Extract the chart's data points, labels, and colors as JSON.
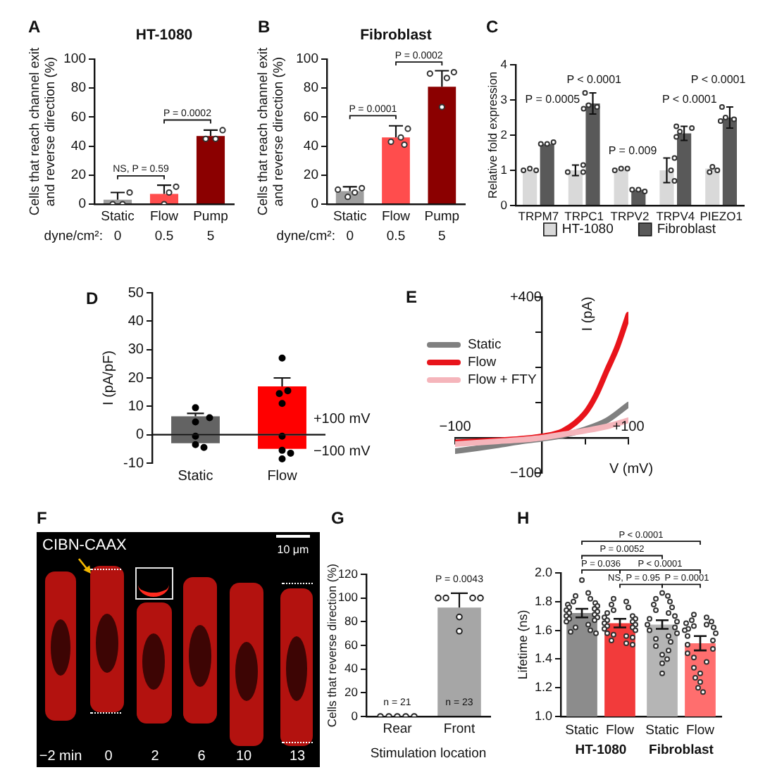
{
  "chart_data": [
    {
      "type": "bar",
      "title": "HT-1080",
      "ylabel": "Cells that reach channel exit and reverse direction (%)",
      "categories": [
        "Static",
        "Flow",
        "Pump"
      ],
      "series": [
        {
          "type": "bar",
          "colors": [
            "#9e9e9e",
            "#ff4d4d",
            "#8b0000"
          ],
          "values": [
            3,
            7,
            47
          ],
          "errors": [
            [
              3,
              8
            ],
            [
              7,
              13
            ],
            [
              47,
              51
            ]
          ]
        },
        {
          "type": "scatter",
          "color": "#333333",
          "x": [
            "Static",
            "Static",
            "Static",
            "Flow",
            "Flow",
            "Flow",
            "Pump",
            "Pump",
            "Pump"
          ],
          "values": [
            8,
            0,
            0,
            12,
            8,
            0,
            51,
            45,
            45
          ]
        }
      ],
      "ylim": [
        0,
        100
      ],
      "yticks": [
        0,
        20,
        40,
        60,
        80,
        100
      ],
      "annotations": [
        "A",
        "NS, P = 0.59",
        "P = 0.0002",
        "dyne/cm²:",
        "0",
        "0.5",
        "5"
      ]
    },
    {
      "type": "bar",
      "title": "Fibroblast",
      "ylabel": "Cells that reach channel exit and reverse direction (%)",
      "categories": [
        "Static",
        "Flow",
        "Pump"
      ],
      "series": [
        {
          "type": "bar",
          "colors": [
            "#9e9e9e",
            "#ff4d4d",
            "#8b0000"
          ],
          "values": [
            9,
            46,
            81
          ],
          "errors": [
            [
              9,
              12
            ],
            [
              46,
              54
            ],
            [
              81,
              92
            ]
          ]
        },
        {
          "type": "scatter",
          "color": "#333333",
          "x": [
            "Static",
            "Static",
            "Static",
            "Static",
            "Flow",
            "Flow",
            "Flow",
            "Flow",
            "Pump",
            "Pump",
            "Pump",
            "Pump"
          ],
          "values": [
            11,
            10,
            8,
            5,
            52,
            46,
            43,
            41,
            91,
            90,
            87,
            67
          ]
        }
      ],
      "ylim": [
        0,
        100
      ],
      "yticks": [
        0,
        20,
        40,
        60,
        80,
        100
      ],
      "annotations": [
        "B",
        "P = 0.0001",
        "P = 0.0002",
        "dyne/cm²:",
        "0",
        "0.5",
        "5"
      ]
    },
    {
      "type": "bar",
      "ylabel": "Relative fold expression",
      "categories": [
        "TRPM7",
        "TRPC1",
        "TRPV2",
        "TRPV4",
        "PIEZO1"
      ],
      "series": [
        {
          "type": "bar",
          "name": "HT-1080",
          "color": "#d9d9d9",
          "values": [
            1,
            1,
            1.05,
            1,
            1.05
          ],
          "errors": [
            null,
            0.15,
            null,
            0.35,
            null
          ]
        },
        {
          "type": "bar",
          "name": "Fibroblast",
          "color": "#595959",
          "values": [
            1.75,
            2.9,
            0.45,
            2.05,
            2.5
          ],
          "errors": [
            null,
            0.3,
            null,
            0.2,
            0.3
          ]
        },
        {
          "type": "scatter",
          "color": "#333333",
          "x": [
            "TRPM7",
            "TRPM7",
            "TRPM7",
            "TRPC1",
            "TRPC1",
            "TRPC1",
            "TRPV2",
            "TRPV2",
            "TRPV2",
            "TRPV4",
            "TRPV4",
            "TRPV4",
            "PIEZO1",
            "PIEZO1",
            "PIEZO1"
          ],
          "values": [
            1.05,
            1,
            1,
            1.15,
            0.95,
            0.95,
            1.05,
            1.05,
            1,
            1.35,
            1,
            0.7,
            1.1,
            1,
            0.95
          ]
        },
        {
          "type": "scatter",
          "color": "#333333",
          "x": [
            "TRPM7",
            "TRPM7",
            "TRPM7",
            "TRPC1",
            "TRPC1",
            "TRPC1",
            "TRPC1",
            "TRPV2",
            "TRPV2",
            "TRPV2",
            "TRPV4",
            "TRPV4",
            "TRPV4",
            "TRPV4",
            "PIEZO1",
            "PIEZO1",
            "PIEZO1",
            "PIEZO1"
          ],
          "values": [
            1.75,
            1.75,
            1.8,
            3.2,
            2.85,
            2.8,
            2.75,
            0.45,
            0.45,
            0.4,
            2.25,
            2.2,
            2.1,
            1.95,
            2.8,
            2.5,
            2.45,
            2.4
          ]
        }
      ],
      "ylim": [
        0,
        4
      ],
      "yticks": [
        0,
        1,
        2,
        3,
        4
      ],
      "legend": "bottom",
      "annotations": [
        "C",
        "P = 0.0005",
        "P < 0.0001",
        "P = 0.009",
        "P < 0.0001",
        "P < 0.0001"
      ]
    },
    {
      "type": "bar",
      "ylabel": "I (pA/pF)",
      "categories": [
        "Static",
        "Flow"
      ],
      "stacked": true,
      "series": [
        {
          "type": "bar",
          "name": "+100 mV",
          "colors": [
            "#636363",
            "#ff0000"
          ],
          "values": [
            6.5,
            17
          ],
          "errors": [
            [
              6.5,
              7.5
            ],
            [
              17,
              20
            ]
          ]
        },
        {
          "type": "bar",
          "name": "−100 mV",
          "colors": [
            "#636363",
            "#ff0000"
          ],
          "values": [
            -3,
            -5
          ]
        },
        {
          "type": "scatter",
          "color": "#000000",
          "x": [
            "Static",
            "Static",
            "Static",
            "Static",
            "Static",
            "Static",
            "Flow",
            "Flow",
            "Flow",
            "Flow",
            "Flow",
            "Flow",
            "Flow",
            "Flow"
          ],
          "values": [
            9.5,
            6,
            4.5,
            -0.5,
            -3.5,
            -4.5,
            27,
            15.5,
            14.5,
            11,
            -0.5,
            -5.5,
            -6.5,
            -8.5
          ]
        }
      ],
      "ylim": [
        -10,
        50
      ],
      "yticks": [
        -10,
        0,
        10,
        20,
        30,
        40,
        50
      ],
      "annotations": [
        "D"
      ]
    },
    {
      "type": "line",
      "xlabel": "V (mV)",
      "ylabel": "I (pA)",
      "legend": "top left",
      "series": [
        {
          "name": "Static",
          "color": "#808080",
          "x": [
            -100,
            -75,
            -50,
            -25,
            0,
            25,
            50,
            75,
            100
          ],
          "values": [
            -38,
            -30,
            -21,
            -11,
            -3,
            7,
            24,
            49,
            94
          ]
        },
        {
          "name": "Flow",
          "color": "#e8141b",
          "x": [
            -100,
            -75,
            -50,
            -25,
            0,
            25,
            50,
            62.5,
            75,
            87.5,
            100
          ],
          "values": [
            -13,
            -10,
            -7,
            -3,
            4,
            20,
            70,
            120,
            190,
            260,
            350
          ]
        },
        {
          "name": "Flow + FTY",
          "color": "#f5b5bb",
          "x": [
            -100,
            -75,
            -50,
            -25,
            0,
            25,
            50,
            75,
            100
          ],
          "values": [
            -18,
            -14,
            -10,
            -6,
            0,
            10,
            20,
            32,
            50
          ]
        }
      ],
      "xlim": [
        -100,
        100
      ],
      "xticks": [
        {
          "value": -100,
          "label": "−100"
        },
        {
          "value": -50,
          "label": null
        },
        {
          "value": 0,
          "label": null
        },
        {
          "value": 50,
          "label": null
        },
        {
          "value": 100,
          "label": "+100"
        }
      ],
      "ylim": [
        -100,
        400
      ],
      "yticks": [
        {
          "value": -100,
          "label": "−100"
        },
        {
          "value": 100,
          "label": null
        },
        {
          "value": 200,
          "label": null
        },
        {
          "value": 300,
          "label": null
        },
        {
          "value": 400,
          "label": "+400"
        }
      ],
      "annotations": [
        "E"
      ]
    },
    {
      "type": "other",
      "annotations": [
        "F",
        "CIBN-CAAX",
        "10 μm",
        "−2 min",
        "0",
        "2",
        "6",
        "10",
        "13"
      ]
    },
    {
      "type": "bar",
      "xlabel": "Stimulation location",
      "ylabel": "Cells that reverse direction (%)",
      "categories": [
        "Rear",
        "Front"
      ],
      "series": [
        {
          "type": "bar",
          "color": "#a6a6a6",
          "values": [
            0,
            92
          ],
          "errors": [
            null,
            [
              92,
              104
            ]
          ]
        },
        {
          "type": "scatter",
          "color": "#222222",
          "x": [
            "Rear",
            "Rear",
            "Rear",
            "Rear",
            "Rear",
            "Front",
            "Front",
            "Front",
            "Front",
            "Front",
            "Front"
          ],
          "values": [
            0,
            0,
            0,
            0,
            0,
            100,
            100,
            100,
            100,
            84,
            72
          ]
        }
      ],
      "ylim": [
        0,
        120
      ],
      "yticks": [
        0,
        20,
        40,
        60,
        80,
        100,
        120
      ],
      "annotations": [
        "G",
        "P = 0.0043",
        "n = 21",
        "n = 23"
      ]
    },
    {
      "type": "bar",
      "ylabel": "Lifetime (ns)",
      "categories": [
        "HT-1080",
        "Fibroblast"
      ],
      "series": [
        {
          "type": "bar",
          "name": "Static",
          "colors": [
            "#8c8c8c",
            "#b5b5b5"
          ],
          "values": [
            1.72,
            1.64
          ],
          "errors": [
            0.03,
            0.03
          ]
        },
        {
          "type": "bar",
          "name": "Flow",
          "colors": [
            "#f23b3b",
            "#ff6e6e"
          ],
          "values": [
            1.65,
            1.51
          ],
          "errors": [
            0.03,
            0.05
          ]
        },
        {
          "type": "scatter",
          "color": "#333333",
          "x": [
            "HT-1080",
            "HT-1080",
            "HT-1080",
            "HT-1080",
            "HT-1080",
            "HT-1080",
            "HT-1080",
            "HT-1080",
            "HT-1080",
            "HT-1080",
            "HT-1080",
            "HT-1080",
            "HT-1080",
            "HT-1080",
            "HT-1080",
            "HT-1080",
            "HT-1080",
            "HT-1080",
            "HT-1080",
            "HT-1080",
            "HT-1080",
            "HT-1080",
            "HT-1080",
            "HT-1080"
          ],
          "values": [
            1.95,
            1.86,
            1.84,
            1.82,
            1.8,
            1.79,
            1.78,
            1.77,
            1.76,
            1.75,
            1.74,
            1.73,
            1.72,
            1.71,
            1.7,
            1.69,
            1.68,
            1.67,
            1.66,
            1.64,
            1.62,
            1.6,
            1.59,
            1.58
          ]
        },
        {
          "type": "scatter",
          "color": "#333333",
          "x": [
            "HT-1080",
            "HT-1080",
            "HT-1080",
            "HT-1080",
            "HT-1080",
            "HT-1080",
            "HT-1080",
            "HT-1080",
            "HT-1080",
            "HT-1080",
            "HT-1080",
            "HT-1080",
            "HT-1080",
            "HT-1080",
            "HT-1080",
            "HT-1080",
            "HT-1080",
            "HT-1080",
            "HT-1080",
            "HT-1080",
            "HT-1080",
            "HT-1080",
            "HT-1080",
            "HT-1080"
          ],
          "values": [
            1.82,
            1.8,
            1.78,
            1.76,
            1.74,
            1.72,
            1.7,
            1.69,
            1.68,
            1.67,
            1.66,
            1.65,
            1.64,
            1.63,
            1.62,
            1.61,
            1.6,
            1.58,
            1.57,
            1.56,
            1.55,
            1.53,
            1.51,
            1.5
          ]
        },
        {
          "type": "scatter",
          "color": "#333333",
          "x": [
            "Fibroblast",
            "Fibroblast",
            "Fibroblast",
            "Fibroblast",
            "Fibroblast",
            "Fibroblast",
            "Fibroblast",
            "Fibroblast",
            "Fibroblast",
            "Fibroblast",
            "Fibroblast",
            "Fibroblast",
            "Fibroblast",
            "Fibroblast",
            "Fibroblast",
            "Fibroblast",
            "Fibroblast",
            "Fibroblast",
            "Fibroblast",
            "Fibroblast",
            "Fibroblast",
            "Fibroblast",
            "Fibroblast",
            "Fibroblast"
          ],
          "values": [
            1.86,
            1.84,
            1.82,
            1.8,
            1.78,
            1.76,
            1.74,
            1.72,
            1.7,
            1.68,
            1.66,
            1.64,
            1.62,
            1.6,
            1.58,
            1.56,
            1.54,
            1.52,
            1.49,
            1.46,
            1.43,
            1.4,
            1.37,
            1.3
          ]
        },
        {
          "type": "scatter",
          "color": "#333333",
          "x": [
            "Fibroblast",
            "Fibroblast",
            "Fibroblast",
            "Fibroblast",
            "Fibroblast",
            "Fibroblast",
            "Fibroblast",
            "Fibroblast",
            "Fibroblast",
            "Fibroblast",
            "Fibroblast",
            "Fibroblast",
            "Fibroblast",
            "Fibroblast",
            "Fibroblast",
            "Fibroblast",
            "Fibroblast",
            "Fibroblast",
            "Fibroblast",
            "Fibroblast",
            "Fibroblast",
            "Fibroblast",
            "Fibroblast",
            "Fibroblast"
          ],
          "values": [
            1.71,
            1.69,
            1.67,
            1.66,
            1.65,
            1.64,
            1.63,
            1.62,
            1.61,
            1.6,
            1.58,
            1.56,
            1.53,
            1.5,
            1.47,
            1.44,
            1.41,
            1.38,
            1.34,
            1.3,
            1.27,
            1.24,
            1.2,
            1.17
          ]
        }
      ],
      "ylim": [
        1,
        2
      ],
      "yticks": [
        {
          "value": 1,
          "label": "1.0"
        },
        1.2,
        1.4,
        1.6,
        1.8,
        {
          "value": 2,
          "label": "2.0"
        }
      ],
      "annotations": [
        "H",
        "P < 0.0001",
        "P = 0.0052",
        "P = 0.036",
        "P < 0.0001",
        "NS, P = 0.95",
        "P = 0.0001"
      ]
    }
  ]
}
